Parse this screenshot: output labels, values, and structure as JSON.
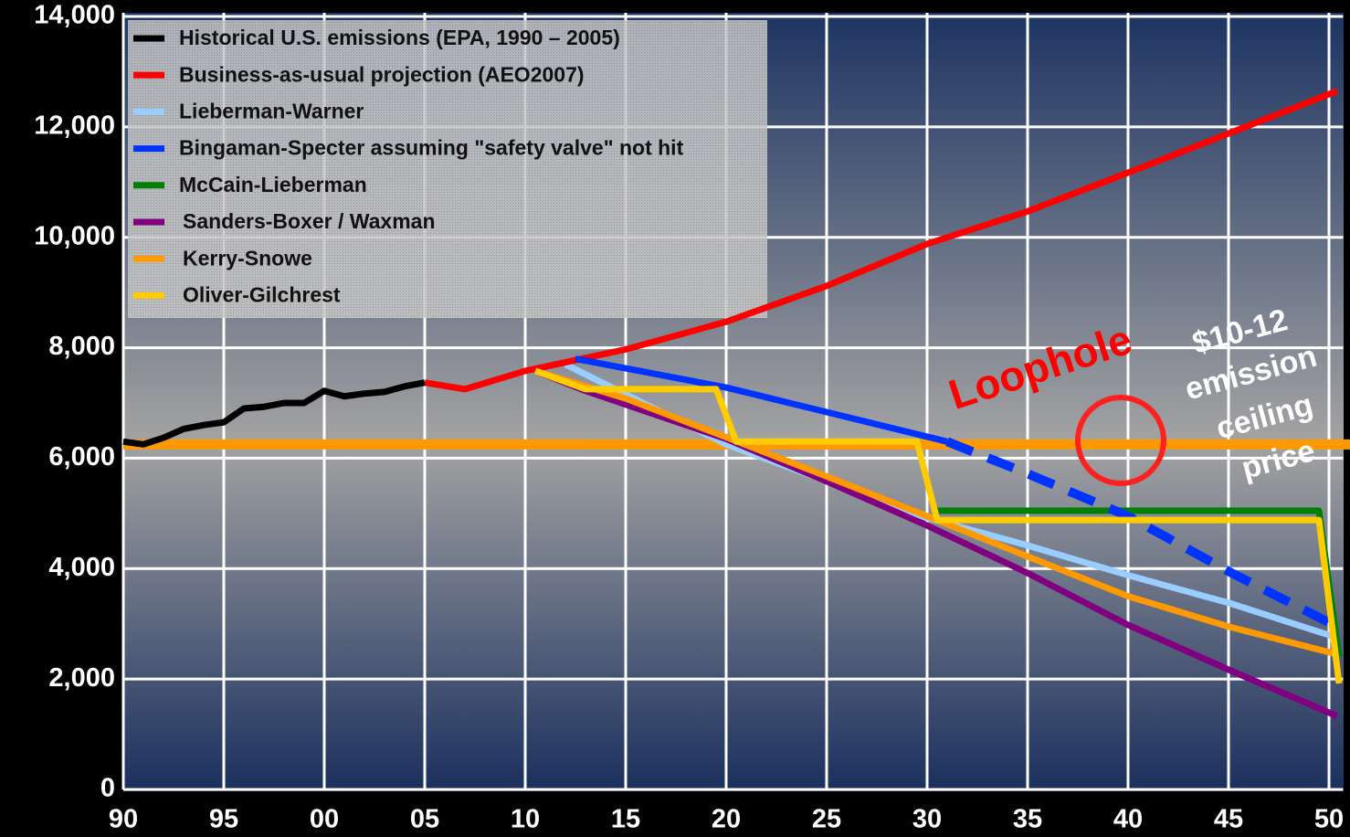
{
  "chart_data": {
    "type": "line",
    "xlim": [
      1990,
      2050.7
    ],
    "ylim": [
      0,
      14000
    ],
    "xticks": [
      {
        "value": 1990,
        "label": "90"
      },
      {
        "value": 1995,
        "label": "95"
      },
      {
        "value": 2000,
        "label": "00"
      },
      {
        "value": 2005,
        "label": "05"
      },
      {
        "value": 2010,
        "label": "10"
      },
      {
        "value": 2015,
        "label": "15"
      },
      {
        "value": 2020,
        "label": "20"
      },
      {
        "value": 2025,
        "label": "25"
      },
      {
        "value": 2030,
        "label": "30"
      },
      {
        "value": 2035,
        "label": "35"
      },
      {
        "value": 2040,
        "label": "40"
      },
      {
        "value": 2045,
        "label": "45"
      },
      {
        "value": 2050,
        "label": "50"
      }
    ],
    "yticks": [
      0,
      {
        "value": 2000,
        "label": "2,000"
      },
      {
        "value": 4000,
        "label": "4,000"
      },
      {
        "value": 6000,
        "label": "6,000"
      },
      {
        "value": 8000,
        "label": "8,000"
      },
      {
        "value": 10000,
        "label": "10,000"
      },
      {
        "value": 12000,
        "label": "12,000"
      },
      {
        "value": 14000,
        "label": "14,000"
      }
    ],
    "grid": true,
    "legend": "top-left",
    "reference_line": {
      "value": 6250,
      "color": "#ff9900"
    },
    "series": [
      {
        "name": "Historical U.S. emissions (EPA, 1990 – 2005)",
        "color": "#000000",
        "x": [
          1990,
          1991,
          1992,
          1993,
          1994,
          1995,
          1996,
          1997,
          1998,
          1999,
          2000,
          2001,
          2002,
          2003,
          2004,
          2005
        ],
        "values": [
          6300,
          6250,
          6370,
          6530,
          6600,
          6650,
          6900,
          6930,
          7000,
          7000,
          7220,
          7120,
          7170,
          7200,
          7300,
          7370
        ]
      },
      {
        "name": "Business-as-usual projection (AEO2007)",
        "color": "#ff0000",
        "x": [
          2005,
          2007,
          2010,
          2015,
          2020,
          2025,
          2030,
          2035,
          2040,
          2045,
          2050.4
        ],
        "values": [
          7370,
          7250,
          7580,
          7970,
          8470,
          9120,
          9880,
          10470,
          11170,
          11880,
          12650
        ]
      },
      {
        "name": "Lieberman-Warner",
        "color": "#99ccff",
        "x": [
          2012,
          2020,
          2030,
          2035,
          2040,
          2045,
          2050.4
        ],
        "values": [
          7700,
          6250,
          4920,
          4420,
          3880,
          3380,
          2750
        ]
      },
      {
        "name": "Bingaman-Specter assuming \"safety valve\" not hit",
        "color": "#0033ff",
        "dashed_from": 2031,
        "x": [
          2012.5,
          2020,
          2031,
          2035,
          2040,
          2045,
          2050.4
        ],
        "values": [
          7800,
          7280,
          6300,
          5720,
          4950,
          3950,
          2950
        ]
      },
      {
        "name": "McCain-Lieberman",
        "color": "#008000",
        "x": [
          2030.5,
          2049.5,
          2050.5
        ],
        "values": [
          5050,
          5050,
          2400
        ]
      },
      {
        "name": "Sanders-Boxer / Waxman",
        "color": "#800080",
        "x": [
          2010.5,
          2013,
          2020,
          2025,
          2030,
          2035,
          2040,
          2045,
          2050.4
        ],
        "values": [
          7580,
          7220,
          6350,
          5580,
          4780,
          3920,
          2980,
          2170,
          1330
        ]
      },
      {
        "name": "Kerry-Snowe",
        "color": "#ff9900",
        "x": [
          2010.5,
          2015,
          2020,
          2025,
          2030,
          2035,
          2040,
          2045,
          2050.4
        ],
        "values": [
          7580,
          7080,
          6380,
          5670,
          4950,
          4220,
          3500,
          2950,
          2450
        ]
      },
      {
        "name": "Oliver-Gilchrest",
        "color": "#ffcc00",
        "x": [
          2010.5,
          2013,
          2019.5,
          2020.5,
          2029.5,
          2030.5,
          2049.5,
          2050.5
        ],
        "values": [
          7580,
          7250,
          7250,
          6300,
          6300,
          4880,
          4880,
          1920
        ]
      }
    ],
    "annotations": [
      {
        "text": "Loophole",
        "color": "#ff0000"
      },
      {
        "lines": [
          "$10-12",
          "emission",
          "ceiling",
          "price"
        ],
        "color": "#ffffff"
      }
    ]
  }
}
